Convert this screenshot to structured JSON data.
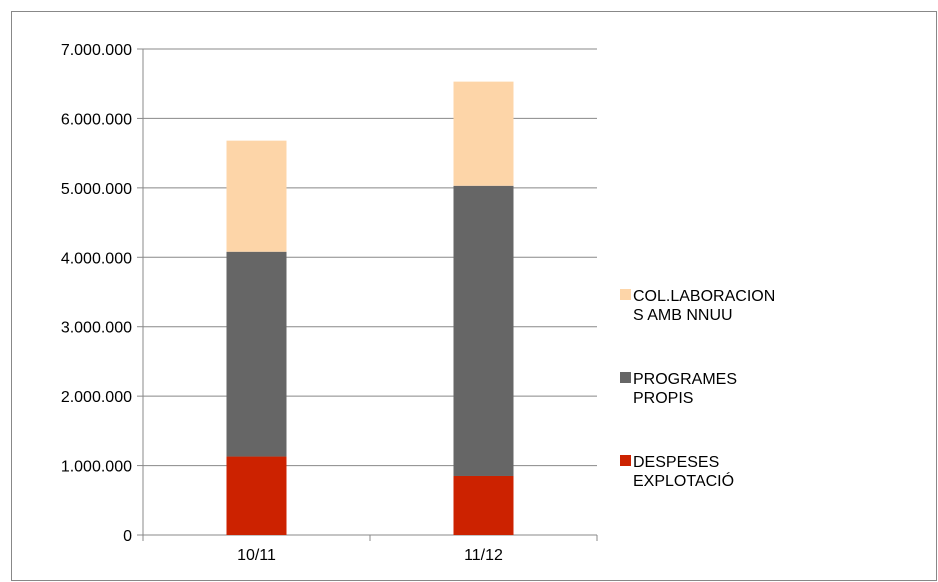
{
  "chart_data": {
    "type": "bar",
    "stacked": true,
    "categories": [
      "10/11",
      "11/12"
    ],
    "series": [
      {
        "name": "DESPESES EXPLOTACIÓ",
        "legend_lines": [
          "DESPESES",
          "EXPLOTACIÓ"
        ],
        "color": "#cc2200",
        "values": [
          1130000,
          850000
        ]
      },
      {
        "name": "PROGRAMES PROPIS",
        "legend_lines": [
          "PROGRAMES",
          "PROPIS"
        ],
        "color": "#666666",
        "values": [
          2950000,
          4180000
        ]
      },
      {
        "name": "COL.LABORACIONS AMB NNUU",
        "legend_lines": [
          "COL.LABORACION",
          "S AMB NNUU"
        ],
        "color": "#fdd5a8",
        "values": [
          1600000,
          1500000
        ]
      }
    ],
    "ylim": [
      0,
      7000000
    ],
    "yticks": [
      0,
      1000000,
      2000000,
      3000000,
      4000000,
      5000000,
      6000000,
      7000000
    ],
    "ytick_labels": [
      "0",
      "1.000.000",
      "2.000.000",
      "3.000.000",
      "4.000.000",
      "5.000.000",
      "6.000.000",
      "7.000.000"
    ],
    "grid": true,
    "legend": "right",
    "title": "",
    "xlabel": "",
    "ylabel": ""
  }
}
